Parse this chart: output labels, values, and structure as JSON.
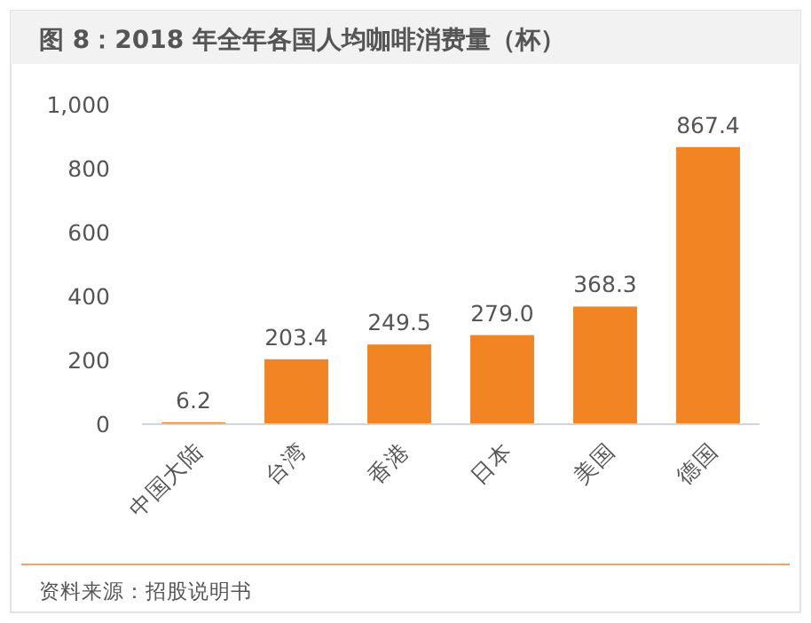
{
  "chart_data": {
    "type": "bar",
    "title": "图 8：2018 年全年各国人均咖啡消费量（杯）",
    "categories": [
      "中国大陆",
      "台湾",
      "香港",
      "日本",
      "美国",
      "德国"
    ],
    "values": [
      6.2,
      203.4,
      249.5,
      279.0,
      368.3,
      867.4
    ],
    "value_labels": [
      "6.2",
      "203.4",
      "249.5",
      "279.0",
      "368.3",
      "867.4"
    ],
    "color": "#f28424",
    "ylim": [
      0,
      1000
    ],
    "yticks": [
      0,
      200,
      400,
      600,
      800,
      {
        "value": 1000,
        "label": "1,000"
      }
    ],
    "annotations": [
      "资料来源：招股说明书"
    ]
  }
}
